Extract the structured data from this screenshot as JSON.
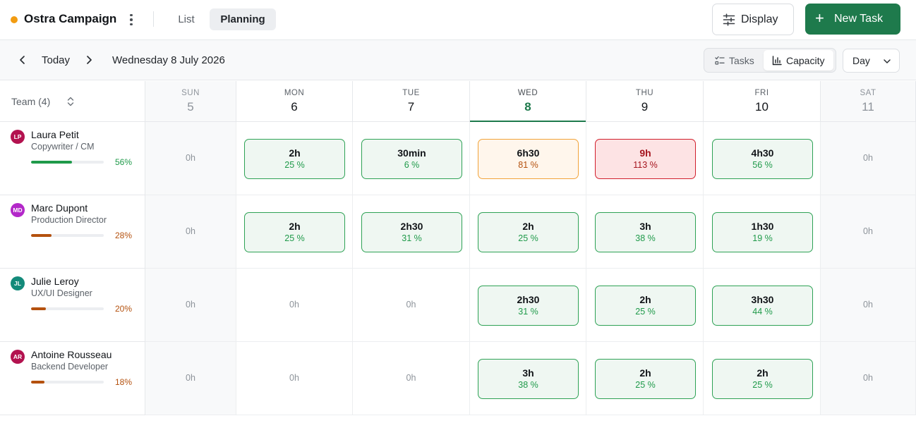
{
  "header": {
    "project_name": "Ostra Campaign",
    "project_color": "#f29c11",
    "tabs": [
      {
        "label": "List",
        "active": false
      },
      {
        "label": "Planning",
        "active": true
      }
    ],
    "display_label": "Display",
    "new_task_label": "New Task",
    "accent": "#1e7a4c"
  },
  "toolbar": {
    "today_label": "Today",
    "current_date": "Wednesday 8 July 2026",
    "view_modes": [
      {
        "label": "Tasks",
        "icon": "checklist-icon",
        "active": false
      },
      {
        "label": "Capacity",
        "icon": "bar-chart-icon",
        "active": true
      }
    ],
    "granularity": "Day"
  },
  "grid": {
    "team_label": "Team (4)",
    "days": [
      {
        "name": "SUN",
        "date": "5",
        "weekend": true,
        "today": false
      },
      {
        "name": "MON",
        "date": "6",
        "weekend": false,
        "today": false
      },
      {
        "name": "TUE",
        "date": "7",
        "weekend": false,
        "today": false
      },
      {
        "name": "WED",
        "date": "8",
        "weekend": false,
        "today": true
      },
      {
        "name": "THU",
        "date": "9",
        "weekend": false,
        "today": false
      },
      {
        "name": "FRI",
        "date": "10",
        "weekend": false,
        "today": false
      },
      {
        "name": "SAT",
        "date": "11",
        "weekend": true,
        "today": false
      }
    ],
    "members": [
      {
        "initials": "LP",
        "name": "Laura Petit",
        "role": "Copywriter / CM",
        "avatar_color": "#b3124f",
        "utilization": "56%",
        "utilization_value": 0.56,
        "bar_color": "#1f9a4a",
        "cells": [
          {
            "empty": "0h"
          },
          {
            "hours": "2h",
            "percent": "25 %",
            "status": "ok"
          },
          {
            "hours": "30min",
            "percent": "6 %",
            "status": "ok"
          },
          {
            "hours": "6h30",
            "percent": "81 %",
            "status": "warn"
          },
          {
            "hours": "9h",
            "percent": "113 %",
            "status": "over"
          },
          {
            "hours": "4h30",
            "percent": "56 %",
            "status": "ok"
          },
          {
            "empty": "0h"
          }
        ]
      },
      {
        "initials": "MD",
        "name": "Marc Dupont",
        "role": "Production Director",
        "avatar_color": "#b328c9",
        "utilization": "28%",
        "utilization_value": 0.28,
        "bar_color": "#b4510e",
        "cells": [
          {
            "empty": "0h"
          },
          {
            "hours": "2h",
            "percent": "25 %",
            "status": "ok"
          },
          {
            "hours": "2h30",
            "percent": "31 %",
            "status": "ok"
          },
          {
            "hours": "2h",
            "percent": "25 %",
            "status": "ok"
          },
          {
            "hours": "3h",
            "percent": "38 %",
            "status": "ok"
          },
          {
            "hours": "1h30",
            "percent": "19 %",
            "status": "ok"
          },
          {
            "empty": "0h"
          }
        ]
      },
      {
        "initials": "JL",
        "name": "Julie Leroy",
        "role": "UX/UI Designer",
        "avatar_color": "#138a7a",
        "utilization": "20%",
        "utilization_value": 0.2,
        "bar_color": "#b4510e",
        "cells": [
          {
            "empty": "0h"
          },
          {
            "empty": "0h"
          },
          {
            "empty": "0h"
          },
          {
            "hours": "2h30",
            "percent": "31 %",
            "status": "ok"
          },
          {
            "hours": "2h",
            "percent": "25 %",
            "status": "ok"
          },
          {
            "hours": "3h30",
            "percent": "44 %",
            "status": "ok"
          },
          {
            "empty": "0h"
          }
        ]
      },
      {
        "initials": "AR",
        "name": "Antoine Rousseau",
        "role": "Backend Developer",
        "avatar_color": "#b3124f",
        "utilization": "18%",
        "utilization_value": 0.18,
        "bar_color": "#b4510e",
        "cells": [
          {
            "empty": "0h"
          },
          {
            "empty": "0h"
          },
          {
            "empty": "0h"
          },
          {
            "hours": "3h",
            "percent": "38 %",
            "status": "ok"
          },
          {
            "hours": "2h",
            "percent": "25 %",
            "status": "ok"
          },
          {
            "hours": "2h",
            "percent": "25 %",
            "status": "ok"
          },
          {
            "empty": "0h"
          }
        ]
      }
    ]
  }
}
